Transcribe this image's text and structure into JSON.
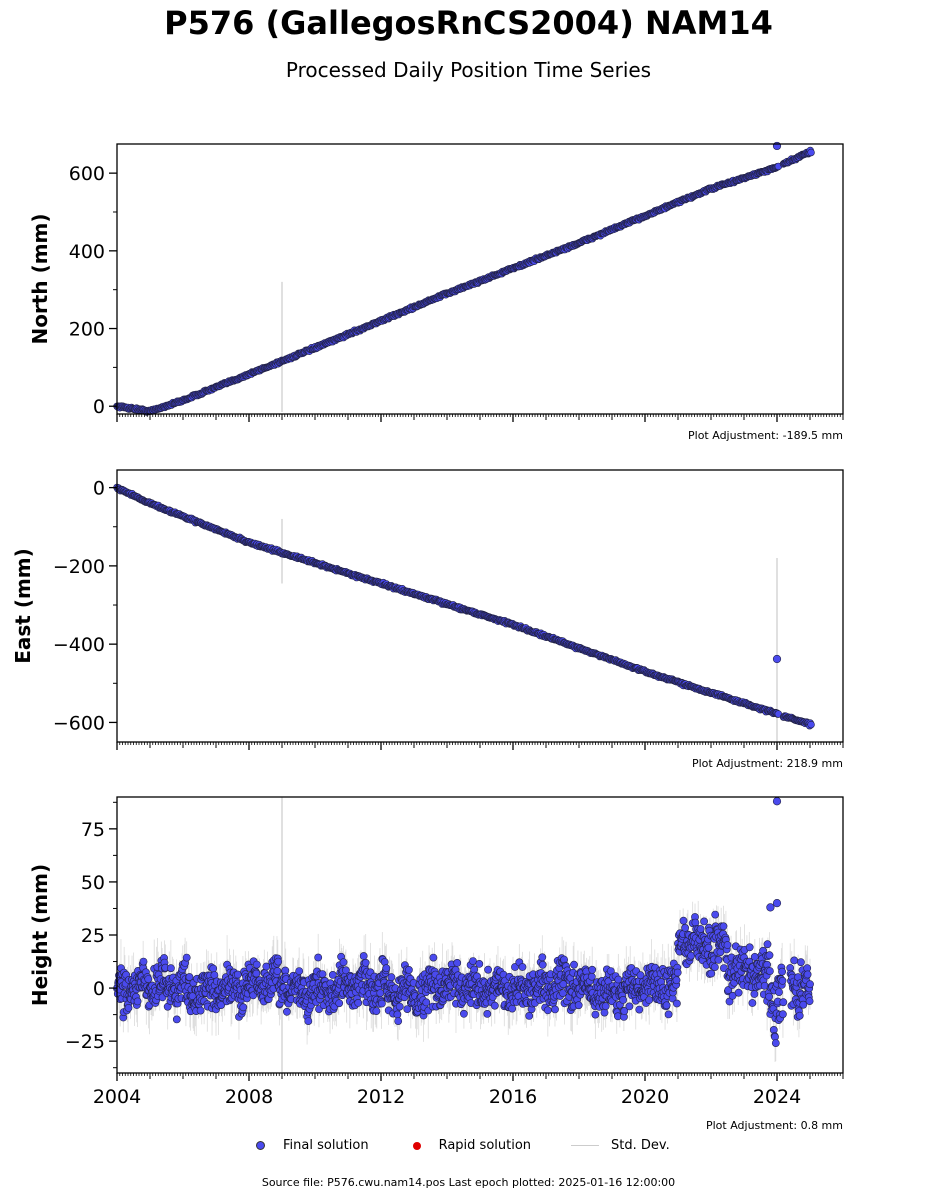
{
  "header": {
    "title": "P576 (GallegosRnCS2004) NAM14",
    "subtitle": "Processed Daily Position Time Series"
  },
  "colors": {
    "final": "#4a4aee",
    "rapid": "#e00000",
    "stddev": "#cccccc",
    "marker_edge": "#222244"
  },
  "chart_data": [
    {
      "type": "scatter",
      "name": "north",
      "ylabel": "North (mm)",
      "xlim": [
        2004.0,
        2026.0
      ],
      "ylim": [
        -20,
        675
      ],
      "yticks": [
        0,
        200,
        400,
        600
      ],
      "adjustment": "Plot Adjustment: -189.5 mm",
      "trend": [
        [
          2004.0,
          0
        ],
        [
          2004.4,
          -5
        ],
        [
          2005.0,
          -13
        ],
        [
          2006.0,
          15
        ],
        [
          2010.0,
          150
        ],
        [
          2014.0,
          290
        ],
        [
          2018.0,
          420
        ],
        [
          2022.0,
          560
        ],
        [
          2024.0,
          615
        ],
        [
          2025.0,
          655
        ]
      ],
      "outliers": [
        [
          2024.0,
          670
        ]
      ],
      "stddev_spikes": [
        [
          2009.0,
          320,
          -15
        ]
      ]
    },
    {
      "type": "scatter",
      "name": "east",
      "ylabel": "East (mm)",
      "xlim": [
        2004.0,
        2026.0
      ],
      "ylim": [
        -650,
        45
      ],
      "yticks": [
        0,
        -200,
        -400,
        -600
      ],
      "adjustment": "Plot Adjustment: 218.9 mm",
      "trend": [
        [
          2004.0,
          0
        ],
        [
          2005.0,
          -40
        ],
        [
          2008.0,
          -140
        ],
        [
          2012.0,
          -245
        ],
        [
          2016.0,
          -350
        ],
        [
          2020.0,
          -470
        ],
        [
          2024.0,
          -578
        ],
        [
          2025.0,
          -605
        ]
      ],
      "outliers": [
        [
          2024.0,
          -438
        ]
      ],
      "stddev_spikes": [
        [
          2009.0,
          -80,
          -245
        ],
        [
          2024.0,
          -180,
          -650
        ]
      ]
    },
    {
      "type": "scatter",
      "name": "height",
      "ylabel": "Height (mm)",
      "xlim": [
        2004.0,
        2026.0
      ],
      "ylim": [
        -40,
        90
      ],
      "yticks": [
        75,
        50,
        25,
        0,
        -25
      ],
      "xticks": [
        2004,
        2008,
        2012,
        2016,
        2020,
        2024
      ],
      "adjustment": "Plot Adjustment: 0.8 mm",
      "segments": [
        [
          2004.0,
          2021.0,
          0,
          8
        ],
        [
          2021.0,
          2022.5,
          22,
          9
        ],
        [
          2022.5,
          2023.7,
          5,
          9
        ],
        [
          2023.7,
          2024.2,
          -5,
          14
        ],
        [
          2024.4,
          2025.0,
          2,
          10
        ]
      ],
      "outliers": [
        [
          2024.0,
          88
        ],
        [
          2024.0,
          40
        ],
        [
          2023.8,
          38
        ]
      ],
      "stddev_spikes": [
        [
          2009.0,
          90,
          -40
        ]
      ]
    }
  ],
  "legend": {
    "final": "Final solution",
    "rapid": "Rapid solution",
    "stddev": "Std. Dev."
  },
  "footer": "Source file: P576.cwu.nam14.pos  Last epoch plotted: 2025-01-16 12:00:00"
}
